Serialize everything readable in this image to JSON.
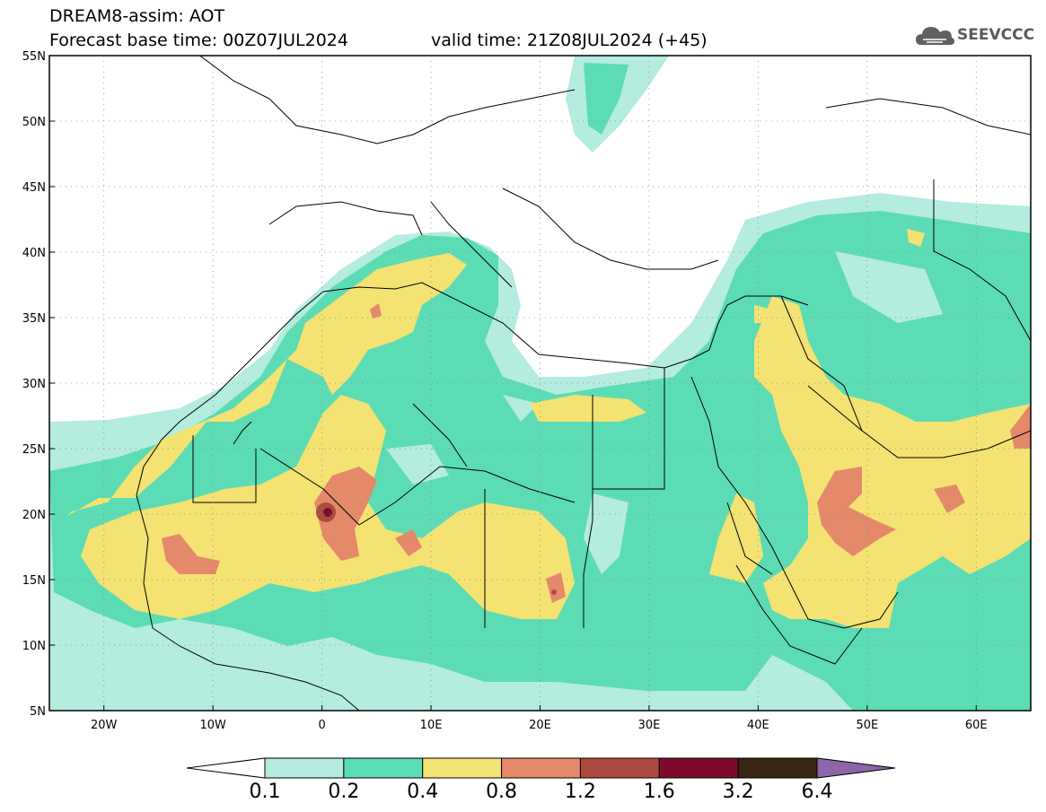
{
  "header": {
    "line1": "DREAM8-assim: AOT",
    "line2": "Forecast base time: 00Z07JUL2024",
    "valid": "valid time: 21Z08JUL2024 (+45)"
  },
  "logo": {
    "text": "SEEVCCC",
    "icon": "cloud-icon",
    "color": "#5a5a5a"
  },
  "map": {
    "lon_range": [
      -25,
      65
    ],
    "lat_range": [
      5,
      55
    ],
    "lat_ticks": [
      "5N",
      "10N",
      "15N",
      "20N",
      "25N",
      "30N",
      "35N",
      "40N",
      "45N",
      "50N",
      "55N"
    ],
    "lon_ticks": [
      "20W",
      "10W",
      "0",
      "10E",
      "20E",
      "30E",
      "40E",
      "50E",
      "60E"
    ]
  },
  "colorbar": {
    "labels": [
      "0.1",
      "0.2",
      "0.4",
      "0.8",
      "1.2",
      "1.6",
      "3.2",
      "6.4"
    ],
    "colors": [
      "#b4ecdf",
      "#5cdcb4",
      "#f4e272",
      "#e4896a",
      "#ab4c3e",
      "#7e0a2d",
      "#3b2614",
      "#8c66a8"
    ]
  }
}
